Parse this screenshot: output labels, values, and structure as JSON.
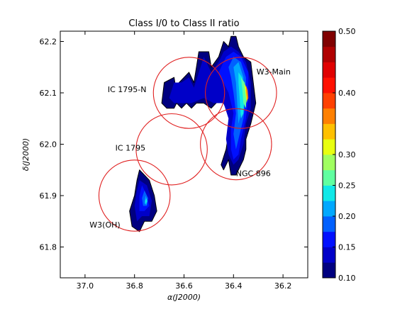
{
  "chart_data": {
    "type": "heatmap",
    "subtype": "filled-contour",
    "title": "Class I/0 to Class II ratio",
    "xlabel": "α(J2000)",
    "ylabel": "δ(J2000)",
    "xlim": [
      37.1,
      36.1
    ],
    "ylim": [
      61.74,
      62.22
    ],
    "x_inverted": true,
    "grid": false,
    "x_ticks": [
      {
        "value": 37.0,
        "label": "37.0"
      },
      {
        "value": 36.8,
        "label": "36.8"
      },
      {
        "value": 36.6,
        "label": "36.6"
      },
      {
        "value": 36.4,
        "label": "36.4"
      },
      {
        "value": 36.2,
        "label": "36.2"
      }
    ],
    "y_ticks": [
      {
        "value": 61.8,
        "label": "61.8"
      },
      {
        "value": 61.9,
        "label": "61.9"
      },
      {
        "value": 62.0,
        "label": "62.0"
      },
      {
        "value": 62.1,
        "label": "62.1"
      },
      {
        "value": 62.2,
        "label": "62.2"
      }
    ],
    "colorbar": {
      "levels": [
        0.1,
        0.125,
        0.15,
        0.175,
        0.2,
        0.225,
        0.25,
        0.275,
        0.3,
        0.325,
        0.35,
        0.375,
        0.4,
        0.425,
        0.45,
        0.475,
        0.5
      ],
      "colors": [
        "#000080",
        "#0000c8",
        "#0010ff",
        "#0060ff",
        "#00a8ff",
        "#10e8e8",
        "#60ffa0",
        "#a0ff60",
        "#e8ff10",
        "#ffc000",
        "#ff8000",
        "#ff4000",
        "#ff1000",
        "#e00000",
        "#b00000",
        "#800000"
      ],
      "ticks": [
        {
          "value": 0.1,
          "label": "0.10"
        },
        {
          "value": 0.15,
          "label": "0.15"
        },
        {
          "value": 0.2,
          "label": "0.20"
        },
        {
          "value": 0.25,
          "label": "0.25"
        },
        {
          "value": 0.3,
          "label": "0.30"
        },
        {
          "value": 0.4,
          "label": "0.40"
        },
        {
          "value": 0.5,
          "label": "0.50"
        }
      ]
    },
    "regions": [
      {
        "label": "IC 1795-N",
        "ra": 36.58,
        "dec": 62.1,
        "radius_deg": 0.07
      },
      {
        "label": "W3-Main",
        "ra": 36.37,
        "dec": 62.1,
        "radius_deg": 0.07
      },
      {
        "label": "IC 1795",
        "ra": 36.65,
        "dec": 61.99,
        "radius_deg": 0.07
      },
      {
        "label": "NGC 896",
        "ra": 36.39,
        "dec": 62.0,
        "radius_deg": 0.07
      },
      {
        "label": "W3(OH)",
        "ra": 36.8,
        "dec": 61.9,
        "radius_deg": 0.07
      }
    ],
    "contours": {
      "north_cloud": [
        {
          "level": 0.1,
          "points": [
            [
              36.69,
              62.08
            ],
            [
              36.68,
              62.12
            ],
            [
              36.64,
              62.13
            ],
            [
              36.63,
              62.1
            ],
            [
              36.64,
              62.09
            ],
            [
              36.62,
              62.12
            ],
            [
              36.58,
              62.14
            ],
            [
              36.56,
              62.12
            ],
            [
              36.55,
              62.15
            ],
            [
              36.54,
              62.18
            ],
            [
              36.5,
              62.18
            ],
            [
              36.49,
              62.15
            ],
            [
              36.46,
              62.17
            ],
            [
              36.44,
              62.2
            ],
            [
              36.42,
              62.19
            ],
            [
              36.41,
              62.21
            ],
            [
              36.39,
              62.21
            ],
            [
              36.38,
              62.19
            ],
            [
              36.36,
              62.17
            ],
            [
              36.33,
              62.16
            ],
            [
              36.32,
              62.12
            ],
            [
              36.31,
              62.08
            ],
            [
              36.33,
              62.04
            ],
            [
              36.35,
              62.01
            ],
            [
              36.35,
              61.99
            ],
            [
              36.36,
              61.97
            ],
            [
              36.38,
              61.95
            ],
            [
              36.39,
              61.94
            ],
            [
              36.41,
              61.94
            ],
            [
              36.42,
              61.97
            ],
            [
              36.44,
              61.95
            ],
            [
              36.45,
              61.96
            ],
            [
              36.43,
              61.99
            ],
            [
              36.42,
              62.02
            ],
            [
              36.41,
              62.05
            ],
            [
              36.43,
              62.07
            ],
            [
              36.45,
              62.09
            ],
            [
              36.49,
              62.07
            ],
            [
              36.52,
              62.08
            ],
            [
              36.55,
              62.08
            ],
            [
              36.57,
              62.07
            ],
            [
              36.59,
              62.08
            ],
            [
              36.61,
              62.07
            ],
            [
              36.63,
              62.08
            ],
            [
              36.64,
              62.07
            ],
            [
              36.67,
              62.07
            ]
          ]
        },
        {
          "level": 0.125,
          "points": [
            [
              36.66,
              62.09
            ],
            [
              36.64,
              62.12
            ],
            [
              36.61,
              62.12
            ],
            [
              36.58,
              62.13
            ],
            [
              36.56,
              62.11
            ],
            [
              36.54,
              62.14
            ],
            [
              36.52,
              62.17
            ],
            [
              36.49,
              62.14
            ],
            [
              36.46,
              62.16
            ],
            [
              36.44,
              62.18
            ],
            [
              36.41,
              62.19
            ],
            [
              36.38,
              62.18
            ],
            [
              36.35,
              62.16
            ],
            [
              36.33,
              62.12
            ],
            [
              36.33,
              62.07
            ],
            [
              36.35,
              62.04
            ],
            [
              36.36,
              62.0
            ],
            [
              36.38,
              61.97
            ],
            [
              36.4,
              61.96
            ],
            [
              36.42,
              61.98
            ],
            [
              36.43,
              62.01
            ],
            [
              36.42,
              62.05
            ],
            [
              36.44,
              62.08
            ],
            [
              36.48,
              62.08
            ],
            [
              36.52,
              62.09
            ],
            [
              36.57,
              62.08
            ],
            [
              36.61,
              62.08
            ],
            [
              36.64,
              62.08
            ]
          ]
        },
        {
          "level": 0.15,
          "points": [
            [
              36.46,
              62.14
            ],
            [
              36.43,
              62.17
            ],
            [
              36.4,
              62.18
            ],
            [
              36.37,
              62.17
            ],
            [
              36.34,
              62.14
            ],
            [
              36.34,
              62.09
            ],
            [
              36.35,
              62.05
            ],
            [
              36.37,
              62.01
            ],
            [
              36.38,
              61.98
            ],
            [
              36.4,
              61.97
            ],
            [
              36.41,
              61.99
            ],
            [
              36.41,
              62.03
            ],
            [
              36.4,
              62.06
            ],
            [
              36.42,
              62.1
            ],
            [
              36.44,
              62.12
            ]
          ]
        },
        {
          "level": 0.175,
          "points": [
            [
              36.42,
              62.15
            ],
            [
              36.4,
              62.17
            ],
            [
              36.37,
              62.16
            ],
            [
              36.35,
              62.13
            ],
            [
              36.35,
              62.09
            ],
            [
              36.36,
              62.05
            ],
            [
              36.38,
              62.01
            ],
            [
              36.39,
              61.99
            ],
            [
              36.4,
              62.02
            ],
            [
              36.39,
              62.06
            ],
            [
              36.4,
              62.1
            ],
            [
              36.41,
              62.13
            ]
          ]
        },
        {
          "level": 0.2,
          "points": [
            [
              36.4,
              62.15
            ],
            [
              36.38,
              62.16
            ],
            [
              36.36,
              62.13
            ],
            [
              36.36,
              62.09
            ],
            [
              36.37,
              62.06
            ],
            [
              36.38,
              62.04
            ],
            [
              36.385,
              62.08
            ],
            [
              36.39,
              62.12
            ]
          ]
        },
        {
          "level": 0.225,
          "points": [
            [
              36.38,
              62.14
            ],
            [
              36.365,
              62.13
            ],
            [
              36.355,
              62.1
            ],
            [
              36.36,
              62.06
            ],
            [
              36.37,
              62.05
            ],
            [
              36.375,
              62.09
            ],
            [
              36.38,
              62.12
            ]
          ]
        },
        {
          "level": 0.25,
          "points": [
            [
              36.37,
              62.13
            ],
            [
              36.355,
              62.12
            ],
            [
              36.348,
              62.09
            ],
            [
              36.35,
              62.07
            ],
            [
              36.36,
              62.08
            ],
            [
              36.365,
              62.11
            ]
          ]
        },
        {
          "level": 0.3,
          "points": [
            [
              36.358,
              62.12
            ],
            [
              36.348,
              62.11
            ],
            [
              36.343,
              62.09
            ],
            [
              36.347,
              62.08
            ],
            [
              36.352,
              62.1
            ]
          ]
        },
        {
          "level": 0.35,
          "points": [
            [
              36.35,
              62.115
            ],
            [
              36.343,
              62.105
            ],
            [
              36.34,
              62.09
            ],
            [
              36.345,
              62.085
            ],
            [
              36.348,
              62.1
            ]
          ]
        }
      ],
      "south_cloud": [
        {
          "level": 0.1,
          "points": [
            [
              36.78,
              61.95
            ],
            [
              36.76,
              61.94
            ],
            [
              36.74,
              61.93
            ],
            [
              36.72,
              61.9
            ],
            [
              36.71,
              61.87
            ],
            [
              36.73,
              61.85
            ],
            [
              36.76,
              61.85
            ],
            [
              36.78,
              61.83
            ],
            [
              36.81,
              61.84
            ],
            [
              36.82,
              61.87
            ],
            [
              36.8,
              61.9
            ],
            [
              36.79,
              61.93
            ]
          ]
        },
        {
          "level": 0.125,
          "points": [
            [
              36.78,
              61.93
            ],
            [
              36.75,
              61.92
            ],
            [
              36.73,
              61.89
            ],
            [
              36.74,
              61.86
            ],
            [
              36.77,
              61.86
            ],
            [
              36.79,
              61.85
            ],
            [
              36.8,
              61.88
            ],
            [
              36.79,
              61.91
            ]
          ]
        },
        {
          "level": 0.15,
          "points": [
            [
              36.77,
              61.92
            ],
            [
              36.75,
              61.9
            ],
            [
              36.74,
              61.88
            ],
            [
              36.76,
              61.87
            ],
            [
              36.78,
              61.87
            ],
            [
              36.78,
              61.9
            ]
          ]
        },
        {
          "level": 0.175,
          "points": [
            [
              36.76,
              61.91
            ],
            [
              36.745,
              61.895
            ],
            [
              36.75,
              61.88
            ],
            [
              36.765,
              61.88
            ],
            [
              36.77,
              61.895
            ]
          ]
        },
        {
          "level": 0.2,
          "points": [
            [
              36.755,
              61.9
            ],
            [
              36.748,
              61.89
            ],
            [
              36.752,
              61.882
            ],
            [
              36.76,
              61.885
            ]
          ]
        },
        {
          "level": 0.225,
          "points": [
            [
              36.752,
              61.895
            ],
            [
              36.749,
              61.888
            ],
            [
              36.755,
              61.884
            ],
            [
              36.757,
              61.89
            ]
          ]
        }
      ]
    },
    "region_color": "#e02020"
  }
}
